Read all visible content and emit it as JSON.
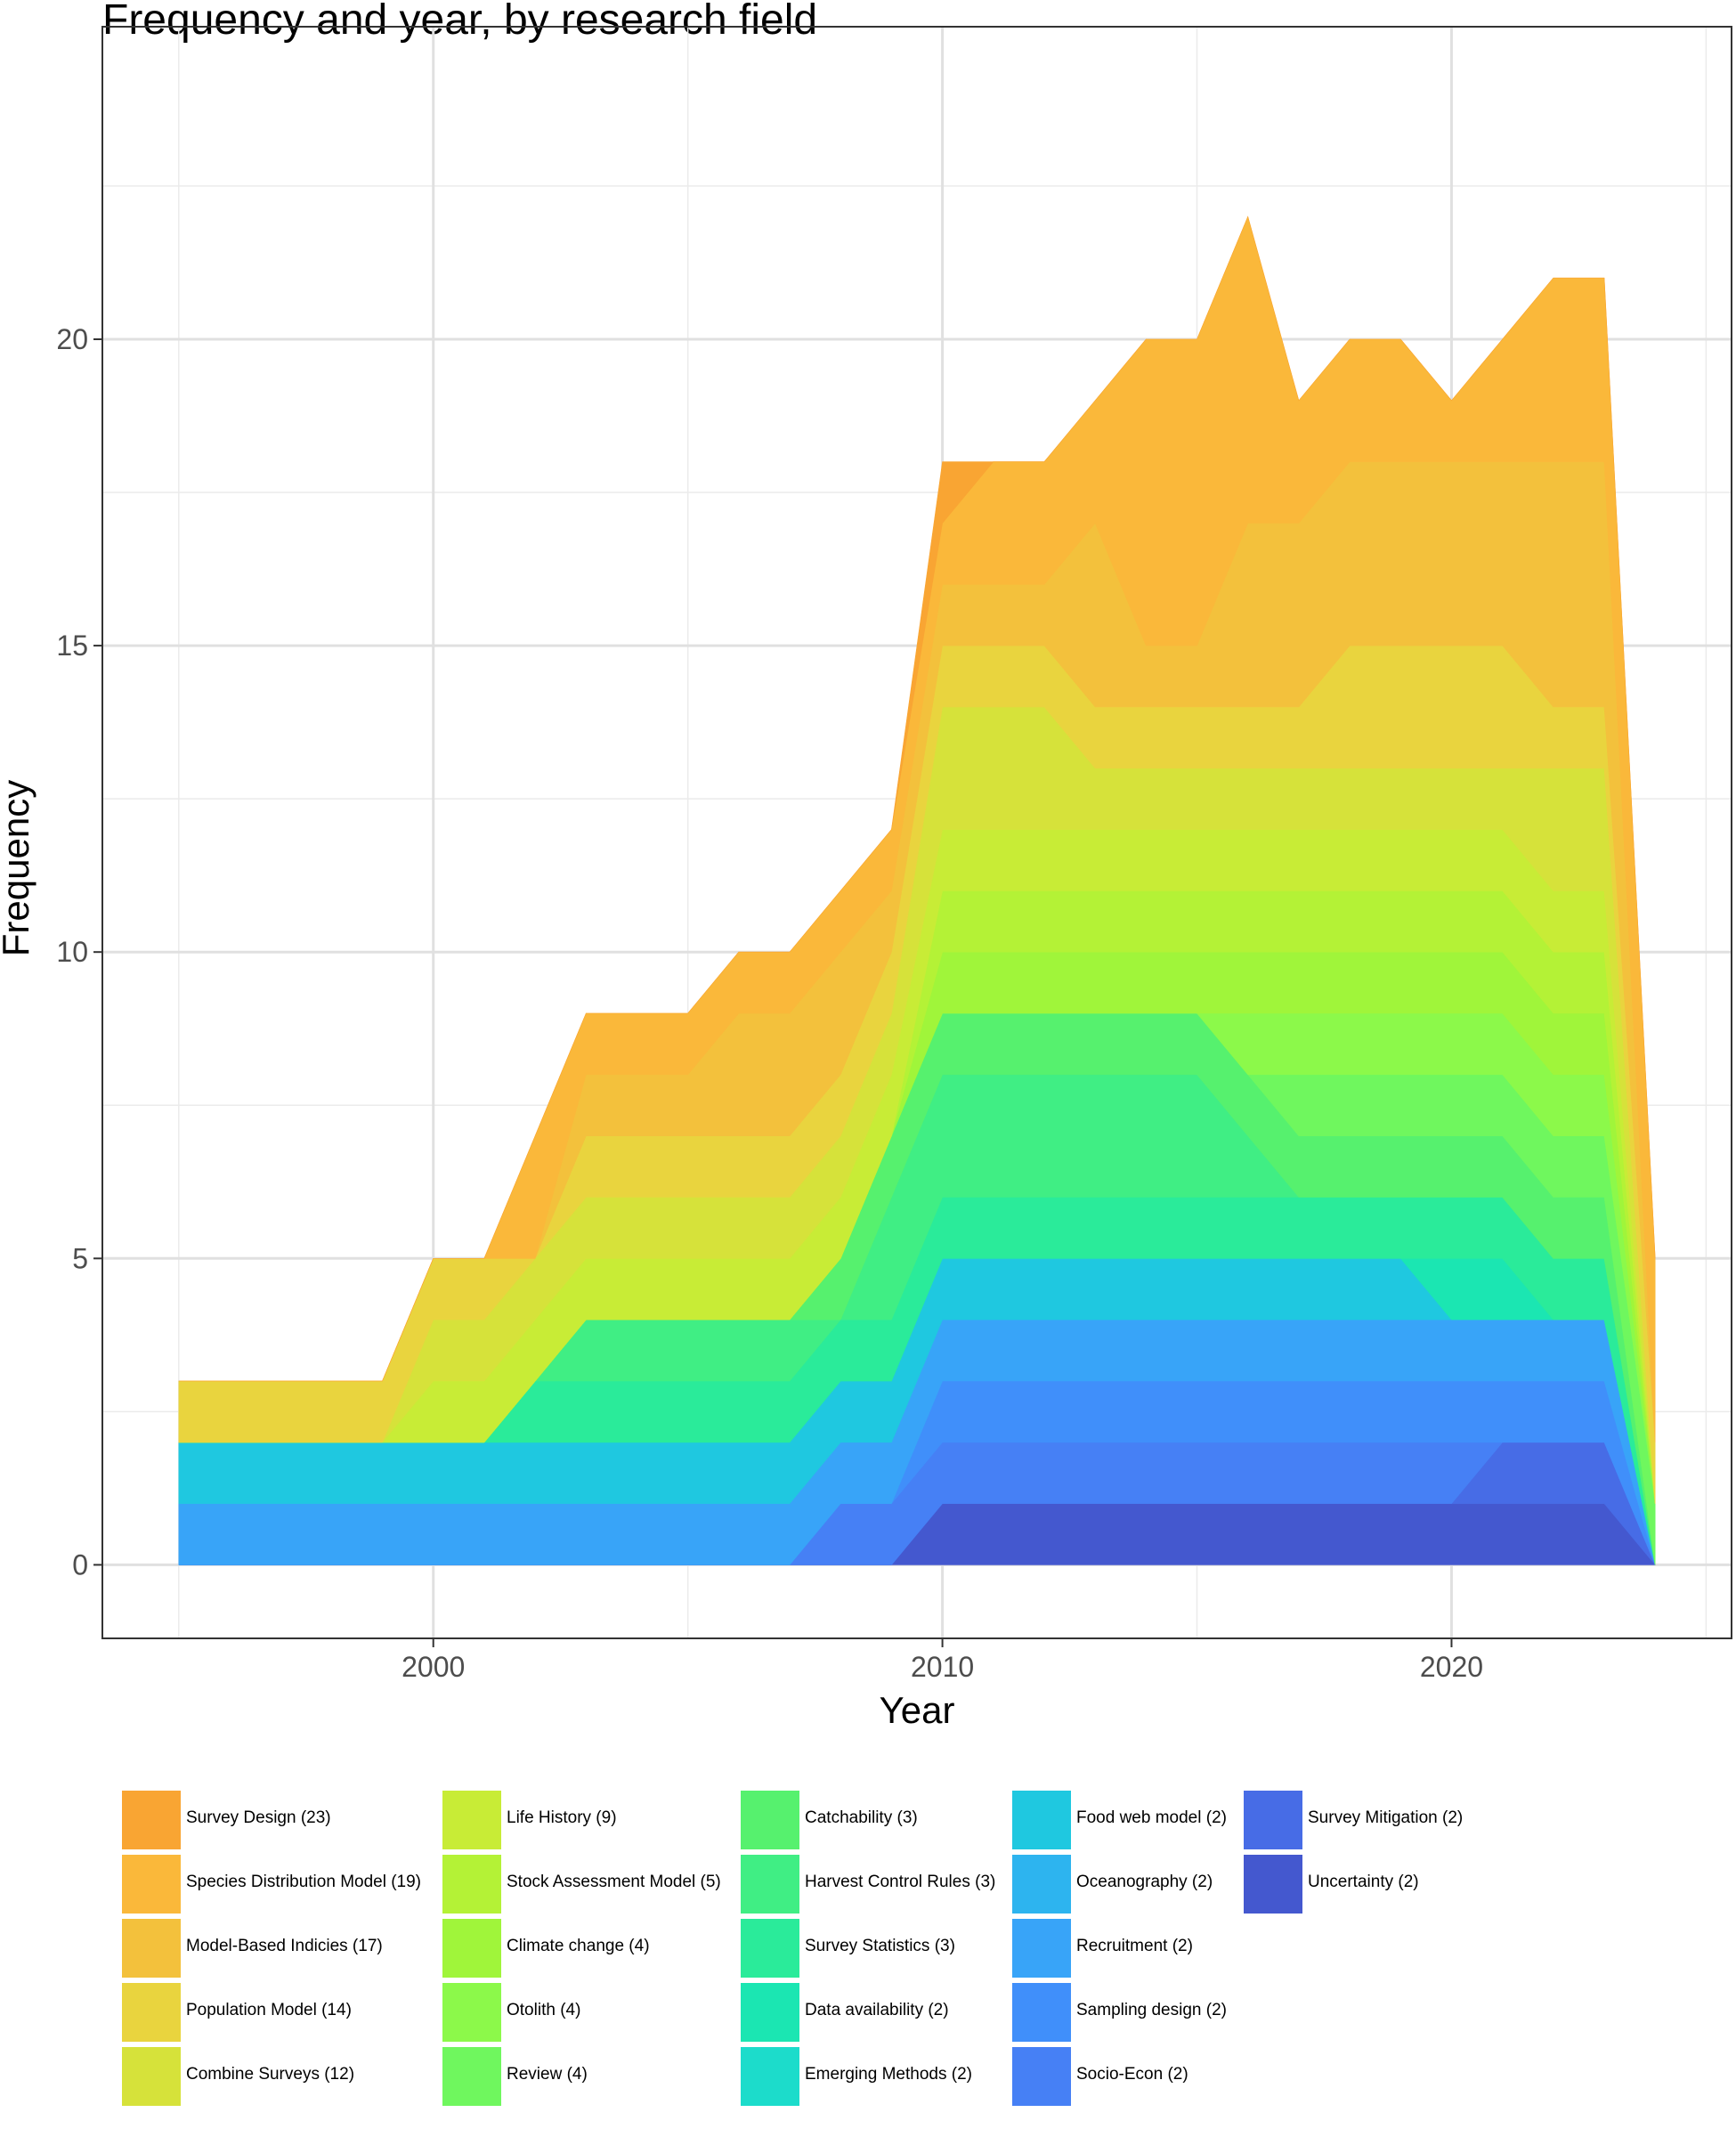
{
  "chart_data": {
    "type": "area",
    "title": "Frequency and year, by research field",
    "xlabel": "Year",
    "ylabel": "Frequency",
    "xlim": [
      1993.5,
      2025.5
    ],
    "ylim": [
      -1.2,
      25.1
    ],
    "xticks": [
      2000,
      2010,
      2020
    ],
    "yticks": [
      0,
      5,
      10,
      15,
      20
    ],
    "grid": true,
    "legend_position": "bottom",
    "x": [
      1995,
      1996,
      1997,
      1998,
      1999,
      2000,
      2001,
      2002,
      2003,
      2004,
      2005,
      2006,
      2007,
      2008,
      2009,
      2010,
      2011,
      2012,
      2013,
      2014,
      2015,
      2016,
      2017,
      2018,
      2019,
      2020,
      2021,
      2022,
      2023,
      2024
    ],
    "series": [
      {
        "name": "Survey Design (23)",
        "color": "#F9A533",
        "values": [
          0,
          0,
          0,
          0,
          0,
          0,
          0,
          0,
          0,
          0,
          0,
          0,
          0,
          0,
          0,
          1,
          0,
          0,
          0,
          0,
          0,
          0,
          0,
          0,
          0,
          0,
          0,
          0,
          0,
          0
        ]
      },
      {
        "name": "Species Distribution Model (19)",
        "color": "#FAB83A",
        "values": [
          0,
          0,
          0,
          0,
          0,
          0,
          0,
          2,
          1,
          1,
          1,
          1,
          1,
          1,
          1,
          1,
          2,
          2,
          2,
          5,
          5,
          5,
          2,
          2,
          2,
          1,
          2,
          3,
          3,
          3
        ]
      },
      {
        "name": "Model-Based Indicies (17)",
        "color": "#F3C13C",
        "values": [
          0,
          0,
          0,
          0,
          0,
          0,
          0,
          0,
          1,
          1,
          1,
          2,
          2,
          2,
          1,
          1,
          1,
          1,
          3,
          1,
          1,
          3,
          3,
          3,
          3,
          3,
          3,
          4,
          4,
          0
        ]
      },
      {
        "name": "Population Model (14)",
        "color": "#E9D43E",
        "values": [
          1,
          1,
          1,
          1,
          1,
          1,
          1,
          0,
          1,
          1,
          1,
          1,
          1,
          1,
          1,
          1,
          1,
          1,
          1,
          1,
          1,
          1,
          1,
          2,
          2,
          2,
          2,
          1,
          1,
          1
        ]
      },
      {
        "name": "Combine Surveys (12)",
        "color": "#D6E23A",
        "values": [
          0,
          0,
          0,
          0,
          0,
          1,
          1,
          1,
          1,
          1,
          1,
          1,
          1,
          1,
          1,
          2,
          2,
          2,
          1,
          1,
          1,
          1,
          1,
          1,
          1,
          1,
          1,
          2,
          2,
          0
        ]
      },
      {
        "name": "Life History (9)",
        "color": "#C8EC36",
        "values": [
          0,
          0,
          0,
          0,
          0,
          1,
          1,
          1,
          1,
          1,
          1,
          1,
          1,
          1,
          1,
          1,
          1,
          1,
          1,
          1,
          1,
          1,
          1,
          1,
          1,
          1,
          1,
          1,
          1,
          0
        ]
      },
      {
        "name": "Stock Assessment Model (5)",
        "color": "#B4F236",
        "values": [
          0,
          0,
          0,
          0,
          0,
          0,
          0,
          0,
          0,
          0,
          0,
          0,
          0,
          0,
          0,
          1,
          1,
          1,
          1,
          1,
          1,
          1,
          1,
          1,
          1,
          1,
          1,
          1,
          1,
          0
        ]
      },
      {
        "name": "Climate change (4)",
        "color": "#A0F53A",
        "values": [
          0,
          0,
          0,
          0,
          0,
          0,
          0,
          0,
          0,
          0,
          0,
          0,
          0,
          0,
          0,
          1,
          1,
          1,
          1,
          1,
          1,
          1,
          1,
          1,
          1,
          1,
          1,
          1,
          1,
          0
        ]
      },
      {
        "name": "Otolith (4)",
        "color": "#8CF94A",
        "values": [
          0,
          0,
          0,
          0,
          0,
          0,
          0,
          0,
          0,
          0,
          0,
          0,
          0,
          0,
          0,
          0,
          0,
          0,
          0,
          0,
          0,
          1,
          1,
          1,
          1,
          1,
          1,
          1,
          1,
          0
        ]
      },
      {
        "name": "Review (4)",
        "color": "#6FF75E",
        "values": [
          0,
          0,
          0,
          0,
          0,
          0,
          0,
          0,
          0,
          0,
          0,
          0,
          0,
          0,
          0,
          0,
          0,
          0,
          0,
          0,
          0,
          0,
          1,
          1,
          1,
          1,
          1,
          1,
          1,
          1
        ]
      },
      {
        "name": "Catchability (3)",
        "color": "#56F16E",
        "values": [
          0,
          0,
          0,
          0,
          0,
          0,
          0,
          0,
          0,
          0,
          0,
          0,
          0,
          1,
          1,
          1,
          1,
          1,
          1,
          1,
          1,
          1,
          1,
          1,
          1,
          1,
          1,
          1,
          1,
          0
        ]
      },
      {
        "name": "Harvest Control Rules (3)",
        "color": "#40EE84",
        "values": [
          0,
          0,
          0,
          0,
          0,
          0,
          0,
          0,
          1,
          1,
          1,
          1,
          1,
          0,
          2,
          2,
          2,
          2,
          2,
          2,
          2,
          1,
          0,
          0,
          0,
          0,
          0,
          0,
          0,
          0
        ]
      },
      {
        "name": "Survey Statistics (3)",
        "color": "#2AEB9A",
        "values": [
          0,
          0,
          0,
          0,
          0,
          0,
          0,
          1,
          1,
          1,
          1,
          1,
          1,
          1,
          1,
          1,
          1,
          1,
          1,
          1,
          1,
          1,
          1,
          1,
          1,
          1,
          1,
          1,
          1,
          0
        ]
      },
      {
        "name": "Data availability (2)",
        "color": "#1BE6B2",
        "values": [
          0,
          0,
          0,
          0,
          0,
          0,
          0,
          0,
          0,
          0,
          0,
          0,
          0,
          0,
          0,
          0,
          0,
          0,
          0,
          0,
          0,
          0,
          0,
          0,
          0,
          1,
          1,
          0,
          0,
          0
        ]
      },
      {
        "name": "Emerging Methods (2)",
        "color": "#1CDCCB",
        "values": [
          0,
          0,
          0,
          0,
          0,
          0,
          0,
          0,
          0,
          0,
          0,
          0,
          0,
          0,
          0,
          0,
          0,
          0,
          0,
          0,
          0,
          0,
          0,
          0,
          0,
          0,
          0,
          0,
          0,
          0
        ]
      },
      {
        "name": "Food web model (2)",
        "color": "#1FC8E0",
        "values": [
          1,
          1,
          1,
          1,
          1,
          1,
          1,
          1,
          1,
          1,
          1,
          1,
          1,
          1,
          1,
          1,
          1,
          1,
          1,
          1,
          1,
          1,
          1,
          1,
          1,
          0,
          0,
          0,
          0,
          0
        ]
      },
      {
        "name": "Oceanography (2)",
        "color": "#2DB4EF",
        "values": [
          0,
          0,
          0,
          0,
          0,
          0,
          0,
          0,
          0,
          0,
          0,
          0,
          0,
          0,
          0,
          0,
          0,
          0,
          0,
          0,
          0,
          0,
          0,
          0,
          0,
          0,
          0,
          0,
          0,
          0
        ]
      },
      {
        "name": "Recruitment (2)",
        "color": "#38A4F8",
        "values": [
          1,
          1,
          1,
          1,
          1,
          1,
          1,
          1,
          1,
          1,
          1,
          1,
          1,
          1,
          1,
          1,
          1,
          1,
          1,
          1,
          1,
          1,
          1,
          1,
          1,
          1,
          1,
          1,
          1,
          0
        ]
      },
      {
        "name": "Sampling design (2)",
        "color": "#408FFA",
        "values": [
          0,
          0,
          0,
          0,
          0,
          0,
          0,
          0,
          0,
          0,
          0,
          0,
          0,
          0,
          0,
          1,
          1,
          1,
          1,
          1,
          1,
          1,
          1,
          1,
          1,
          1,
          1,
          1,
          1,
          0
        ]
      },
      {
        "name": "Socio-Econ (2)",
        "color": "#4680F5",
        "values": [
          0,
          0,
          0,
          0,
          0,
          0,
          0,
          0,
          0,
          0,
          0,
          0,
          0,
          1,
          1,
          1,
          1,
          1,
          1,
          1,
          1,
          1,
          1,
          1,
          1,
          1,
          0,
          0,
          0,
          0
        ]
      },
      {
        "name": "Survey Mitigation (2)",
        "color": "#476CE6",
        "values": [
          0,
          0,
          0,
          0,
          0,
          0,
          0,
          0,
          0,
          0,
          0,
          0,
          0,
          0,
          0,
          0,
          0,
          0,
          0,
          0,
          0,
          0,
          0,
          0,
          0,
          0,
          1,
          1,
          1,
          0
        ]
      },
      {
        "name": "Uncertainty (2)",
        "color": "#4458CF",
        "values": [
          0,
          0,
          0,
          0,
          0,
          0,
          0,
          0,
          0,
          0,
          0,
          0,
          0,
          0,
          0,
          1,
          1,
          1,
          1,
          1,
          1,
          1,
          1,
          1,
          1,
          1,
          1,
          1,
          1,
          0
        ]
      }
    ]
  }
}
